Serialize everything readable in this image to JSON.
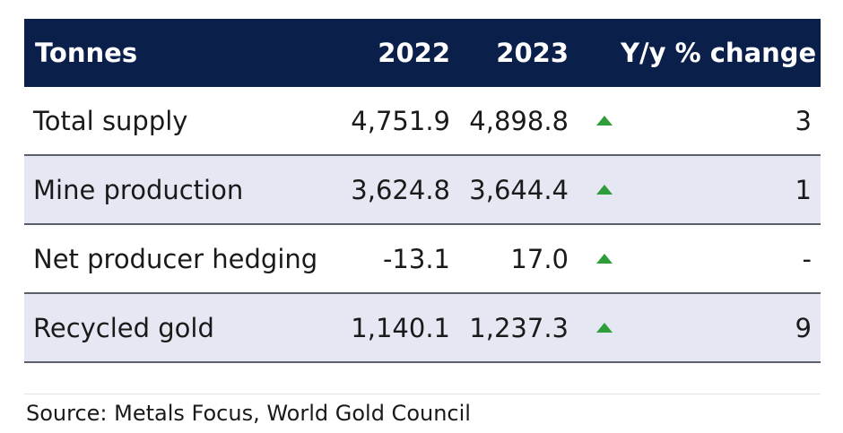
{
  "table": {
    "headers": {
      "label": "Tonnes",
      "col_2022": "2022",
      "col_2023": "2023",
      "change": "Y/y % change"
    },
    "rows": [
      {
        "label": "Total supply",
        "v2022": "4,751.9",
        "v2023": "4,898.8",
        "trend": "up",
        "change": "3"
      },
      {
        "label": "Mine production",
        "v2022": "3,624.8",
        "v2023": "3,644.4",
        "trend": "up",
        "change": "1"
      },
      {
        "label": "Net producer hedging",
        "v2022": "-13.1",
        "v2023": "17.0",
        "trend": "up",
        "change": "-"
      },
      {
        "label": "Recycled gold",
        "v2022": "1,140.1",
        "v2023": "1,237.3",
        "trend": "up",
        "change": "9"
      }
    ]
  },
  "source": "Source: Metals Focus, World Gold Council",
  "colors": {
    "header_bg": "#0b1f4b",
    "row_shade": "#e5e8f3",
    "trend_up": "#2e9d3a"
  }
}
